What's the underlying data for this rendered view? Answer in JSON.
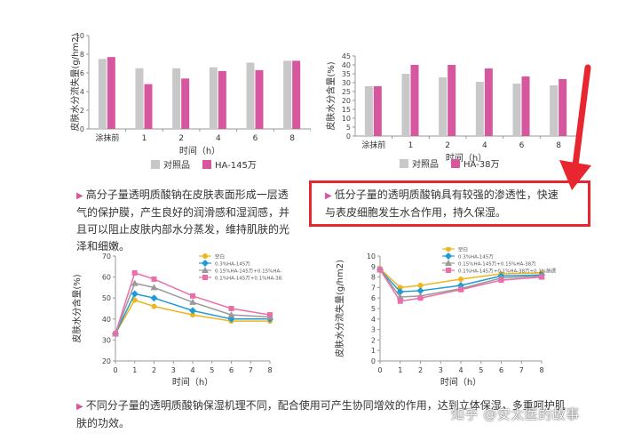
{
  "colors": {
    "control": "#c8c8c8",
    "ha": "#d6579e",
    "highlight": "#e8262f",
    "accent_triangle": "#d6579e"
  },
  "chart_data": [
    {
      "type": "bar",
      "title": "",
      "xlabel": "时间（h）",
      "ylabel": "皮肤水分流失量(g/hm2)",
      "categories": [
        "涂抹前",
        "1",
        "2",
        "4",
        "6",
        "8"
      ],
      "yticks": [
        "0",
        "2",
        "4",
        "6",
        "8",
        "10"
      ],
      "ylim": [
        0,
        10
      ],
      "series": [
        {
          "name": "对照品",
          "values": [
            7.5,
            6.5,
            6.5,
            6.6,
            7.1,
            7.3
          ]
        },
        {
          "name": "HA-145万",
          "values": [
            7.7,
            4.8,
            5.4,
            6.2,
            6.3,
            7.3
          ]
        }
      ],
      "legend": "bottom",
      "grid": false
    },
    {
      "type": "bar",
      "title": "",
      "xlabel": "时间（h）",
      "ylabel": "皮肤水分含量(%)",
      "categories": [
        "涂抹前",
        "1",
        "2",
        "4",
        "6",
        "8"
      ],
      "yticks": [
        "0",
        "5",
        "10",
        "15",
        "20",
        "25",
        "30",
        "35",
        "40",
        "45"
      ],
      "ylim": [
        0,
        45
      ],
      "series": [
        {
          "name": "对照品",
          "values": [
            28,
            35,
            33,
            30.5,
            29.5,
            28.5
          ]
        },
        {
          "name": "HA-38万",
          "values": [
            28,
            40,
            40,
            38,
            33.5,
            32
          ]
        }
      ],
      "legend": "bottom",
      "grid": false
    },
    {
      "type": "line",
      "title": "",
      "xlabel": "时间（h）",
      "ylabel": "皮肤水分含量(%)",
      "x": [
        0,
        1,
        2,
        4,
        6,
        8
      ],
      "xticks": [
        "0",
        "1",
        "2",
        "3",
        "4",
        "5",
        "6",
        "7",
        "8"
      ],
      "yticks": [
        "20",
        "30",
        "40",
        "50",
        "60",
        "70"
      ],
      "ylim": [
        20,
        70
      ],
      "series": [
        {
          "name": "空白",
          "color": "#f0b41c",
          "marker": "circle",
          "values": [
            33,
            49,
            46,
            42,
            39,
            39
          ]
        },
        {
          "name": "0.3%HA-145万",
          "color": "#1e9bd7",
          "marker": "diamond",
          "values": [
            33,
            52,
            50,
            44,
            40,
            40
          ]
        },
        {
          "name": "0.15%HA-145万+0.15%HA-38万",
          "color": "#9a9a9a",
          "marker": "triangle",
          "values": [
            33,
            57,
            55,
            48,
            42,
            41
          ]
        },
        {
          "name": "0.1%HA-145万+0.1%HA-38万+0.1%纳透HA",
          "color": "#e96fa9",
          "marker": "square",
          "values": [
            33,
            62,
            59,
            51,
            45,
            42
          ]
        }
      ],
      "legend": "top",
      "grid": false
    },
    {
      "type": "line",
      "title": "",
      "xlabel": "时间（h）",
      "ylabel": "皮肤水分流失量(g/hm2)",
      "x": [
        0,
        1,
        2,
        4,
        6,
        8
      ],
      "xticks": [
        "0",
        "1",
        "2",
        "3",
        "4",
        "5",
        "6",
        "7",
        "8"
      ],
      "yticks": [
        "0",
        "1",
        "2",
        "3",
        "4",
        "5",
        "6",
        "7",
        "8",
        "9",
        "10"
      ],
      "ylim": [
        0,
        10
      ],
      "series": [
        {
          "name": "空白",
          "color": "#f0b41c",
          "marker": "circle",
          "values": [
            8.8,
            7.0,
            7.2,
            7.8,
            8.3,
            8.4
          ]
        },
        {
          "name": "0.3%HA-145万",
          "color": "#1e9bd7",
          "marker": "diamond",
          "values": [
            8.7,
            6.6,
            6.7,
            7.2,
            8.1,
            8.2
          ]
        },
        {
          "name": "0.15%HA-145万+0.15%HA-38万",
          "color": "#9a9a9a",
          "marker": "triangle",
          "values": [
            8.7,
            6.1,
            6.2,
            6.9,
            7.9,
            8.1
          ]
        },
        {
          "name": "0.1%HA-145万+0.1%HA-38万+0.1%纳透HA",
          "color": "#e96fa9",
          "marker": "square",
          "values": [
            8.7,
            5.7,
            6.0,
            6.8,
            7.7,
            8.0
          ]
        }
      ],
      "legend": "top",
      "grid": false
    }
  ],
  "text": {
    "para1": "高分子量透明质酸钠在皮肤表面形成一层透气的保护膜，产生良好的润滑感和湿润感，并且可以阻止皮肤内部水分蒸发，维持肌肤的光泽和细嫩。",
    "para2": "低分子量的透明质酸钠具有较强的渗透性，快速与表皮细胞发生水合作用，持久保湿。",
    "para3": "不同分子量的透明质酸钠保湿机理不同，配合使用可产生协同增效的作用，达到立体保湿，多重呵护肌肤的功效。",
    "watermark": "知乎 @安太医的故事"
  }
}
